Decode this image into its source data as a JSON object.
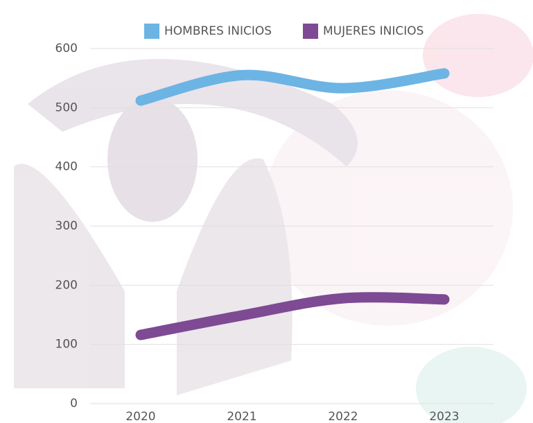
{
  "chart_data": {
    "type": "line",
    "categories": [
      "2020",
      "2021",
      "2022",
      "2023"
    ],
    "series": [
      {
        "name": "HOMBRES INICIOS",
        "color": "#6cb4e4",
        "values": [
          512,
          555,
          533,
          558
        ]
      },
      {
        "name": "MUJERES INICIOS",
        "color": "#7e4a93",
        "values": [
          116,
          149,
          178,
          176
        ]
      }
    ],
    "ylim": [
      0,
      600
    ],
    "yticks": [
      0,
      100,
      200,
      300,
      400,
      500,
      600
    ],
    "grid": true,
    "legend": "top",
    "smooth": true
  }
}
